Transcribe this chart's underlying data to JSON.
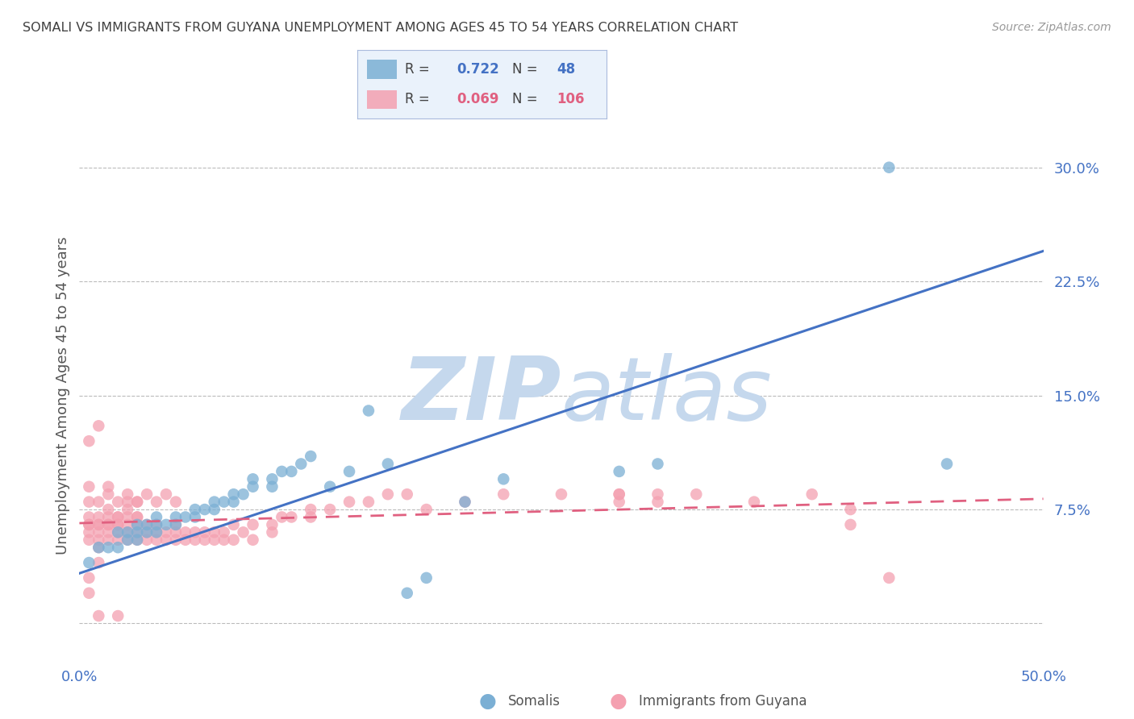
{
  "title": "SOMALI VS IMMIGRANTS FROM GUYANA UNEMPLOYMENT AMONG AGES 45 TO 54 YEARS CORRELATION CHART",
  "source": "Source: ZipAtlas.com",
  "ylabel": "Unemployment Among Ages 45 to 54 years",
  "xlim": [
    0.0,
    0.5
  ],
  "ylim": [
    -0.025,
    0.325
  ],
  "yticks": [
    0.0,
    0.075,
    0.15,
    0.225,
    0.3
  ],
  "ytick_labels": [
    "",
    "7.5%",
    "15.0%",
    "22.5%",
    "30.0%"
  ],
  "xticks": [
    0.0,
    0.1,
    0.2,
    0.3,
    0.4,
    0.5
  ],
  "xtick_labels": [
    "0.0%",
    "",
    "",
    "",
    "",
    "50.0%"
  ],
  "somali_R": 0.722,
  "somali_N": 48,
  "guyana_R": 0.069,
  "guyana_N": 106,
  "somali_color": "#7BAFD4",
  "guyana_color": "#F4A0B0",
  "somali_line_color": "#4472C4",
  "guyana_line_color": "#E06080",
  "background_color": "#FFFFFF",
  "grid_color": "#BBBBBB",
  "watermark_color": "#C5D8ED",
  "title_color": "#404040",
  "axis_label_color": "#555555",
  "tick_label_color": "#4472C4",
  "legend_bg_color": "#EAF2FB",
  "legend_border_color": "#AABBDD",
  "somali_scatter_x": [
    0.005,
    0.01,
    0.015,
    0.02,
    0.02,
    0.025,
    0.025,
    0.03,
    0.03,
    0.03,
    0.035,
    0.035,
    0.04,
    0.04,
    0.04,
    0.045,
    0.05,
    0.05,
    0.055,
    0.06,
    0.06,
    0.065,
    0.07,
    0.07,
    0.075,
    0.08,
    0.08,
    0.085,
    0.09,
    0.09,
    0.1,
    0.1,
    0.105,
    0.11,
    0.115,
    0.12,
    0.13,
    0.14,
    0.15,
    0.16,
    0.17,
    0.18,
    0.2,
    0.22,
    0.28,
    0.3,
    0.42,
    0.45
  ],
  "somali_scatter_y": [
    0.04,
    0.05,
    0.05,
    0.05,
    0.06,
    0.055,
    0.06,
    0.055,
    0.06,
    0.065,
    0.06,
    0.065,
    0.06,
    0.065,
    0.07,
    0.065,
    0.065,
    0.07,
    0.07,
    0.07,
    0.075,
    0.075,
    0.075,
    0.08,
    0.08,
    0.08,
    0.085,
    0.085,
    0.09,
    0.095,
    0.09,
    0.095,
    0.1,
    0.1,
    0.105,
    0.11,
    0.09,
    0.1,
    0.14,
    0.105,
    0.02,
    0.03,
    0.08,
    0.095,
    0.1,
    0.105,
    0.3,
    0.105
  ],
  "guyana_scatter_x": [
    0.005,
    0.005,
    0.005,
    0.01,
    0.01,
    0.01,
    0.01,
    0.015,
    0.015,
    0.015,
    0.015,
    0.02,
    0.02,
    0.02,
    0.02,
    0.025,
    0.025,
    0.025,
    0.025,
    0.03,
    0.03,
    0.03,
    0.03,
    0.035,
    0.035,
    0.035,
    0.04,
    0.04,
    0.04,
    0.045,
    0.045,
    0.05,
    0.05,
    0.05,
    0.055,
    0.055,
    0.06,
    0.06,
    0.065,
    0.065,
    0.07,
    0.07,
    0.075,
    0.075,
    0.08,
    0.08,
    0.085,
    0.09,
    0.09,
    0.1,
    0.1,
    0.105,
    0.11,
    0.12,
    0.12,
    0.13,
    0.14,
    0.15,
    0.16,
    0.17,
    0.18,
    0.2,
    0.22,
    0.25,
    0.28,
    0.3,
    0.32,
    0.35,
    0.38,
    0.4,
    0.005,
    0.01,
    0.015,
    0.02,
    0.025,
    0.03,
    0.035,
    0.04,
    0.045,
    0.05,
    0.005,
    0.01,
    0.015,
    0.02,
    0.025,
    0.03,
    0.005,
    0.01,
    0.015,
    0.02,
    0.005,
    0.01,
    0.015,
    0.005,
    0.01,
    0.005,
    0.005,
    0.01,
    0.02,
    0.28,
    0.3,
    0.4,
    0.28,
    0.42,
    0.025,
    0.03
  ],
  "guyana_scatter_y": [
    0.055,
    0.06,
    0.065,
    0.05,
    0.055,
    0.06,
    0.065,
    0.055,
    0.06,
    0.065,
    0.07,
    0.055,
    0.06,
    0.065,
    0.07,
    0.055,
    0.06,
    0.065,
    0.07,
    0.055,
    0.06,
    0.065,
    0.07,
    0.055,
    0.06,
    0.065,
    0.055,
    0.06,
    0.065,
    0.055,
    0.06,
    0.055,
    0.06,
    0.065,
    0.055,
    0.06,
    0.055,
    0.06,
    0.055,
    0.06,
    0.055,
    0.06,
    0.055,
    0.06,
    0.055,
    0.065,
    0.06,
    0.055,
    0.065,
    0.06,
    0.065,
    0.07,
    0.07,
    0.07,
    0.075,
    0.075,
    0.08,
    0.08,
    0.085,
    0.085,
    0.075,
    0.08,
    0.085,
    0.085,
    0.085,
    0.08,
    0.085,
    0.08,
    0.085,
    0.075,
    0.08,
    0.08,
    0.085,
    0.08,
    0.08,
    0.08,
    0.085,
    0.08,
    0.085,
    0.08,
    0.07,
    0.07,
    0.075,
    0.07,
    0.075,
    0.07,
    0.065,
    0.065,
    0.065,
    0.065,
    0.12,
    0.13,
    0.09,
    0.09,
    0.04,
    0.03,
    0.02,
    0.005,
    0.005,
    0.085,
    0.085,
    0.065,
    0.08,
    0.03,
    0.085,
    0.08
  ],
  "somali_line_x": [
    0.0,
    0.5
  ],
  "somali_line_y_start": 0.033,
  "somali_line_y_end": 0.245,
  "guyana_line_x": [
    0.0,
    0.5
  ],
  "guyana_line_y_start": 0.066,
  "guyana_line_y_end": 0.082
}
